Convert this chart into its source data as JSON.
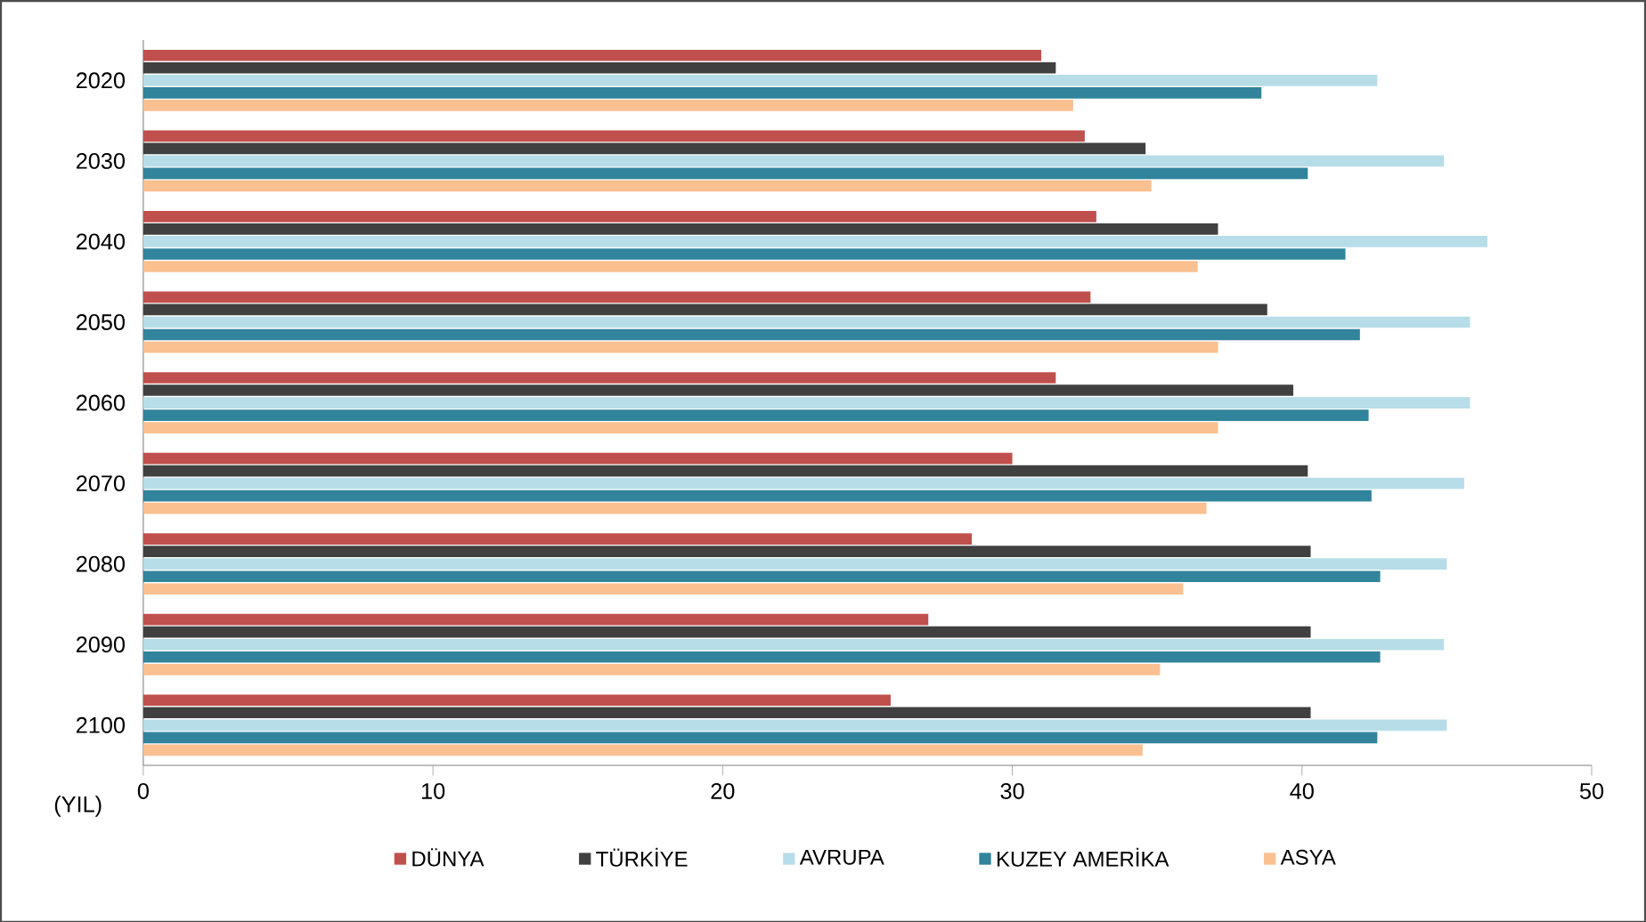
{
  "chart_data": {
    "type": "bar",
    "orientation": "horizontal",
    "ylabel": "(YIL)",
    "categories": [
      "2020",
      "2030",
      "2040",
      "2050",
      "2060",
      "2070",
      "2080",
      "2090",
      "2100"
    ],
    "series": [
      {
        "name": "DÜNYA",
        "color": "#c0504d",
        "values": [
          31.0,
          32.5,
          32.9,
          32.7,
          31.5,
          30.0,
          28.6,
          27.1,
          25.8
        ]
      },
      {
        "name": "TÜRKİYE",
        "color": "#404040",
        "values": [
          31.5,
          34.6,
          37.1,
          38.8,
          39.7,
          40.2,
          40.3,
          40.3,
          40.3
        ]
      },
      {
        "name": "AVRUPA",
        "color": "#b7dde8",
        "values": [
          42.6,
          44.9,
          46.4,
          45.8,
          45.8,
          45.6,
          45.0,
          44.9,
          45.0
        ]
      },
      {
        "name": "KUZEY AMERİKA",
        "color": "#31849b",
        "values": [
          38.6,
          40.2,
          41.5,
          42.0,
          42.3,
          42.4,
          42.7,
          42.7,
          42.6
        ]
      },
      {
        "name": "ASYA",
        "color": "#fac090",
        "values": [
          32.1,
          34.8,
          36.4,
          37.1,
          37.1,
          36.7,
          35.9,
          35.1,
          34.5
        ]
      }
    ],
    "xlim": [
      0,
      50
    ],
    "xticks": [
      0,
      10,
      20,
      30,
      40,
      50
    ],
    "legend": "bottom"
  }
}
